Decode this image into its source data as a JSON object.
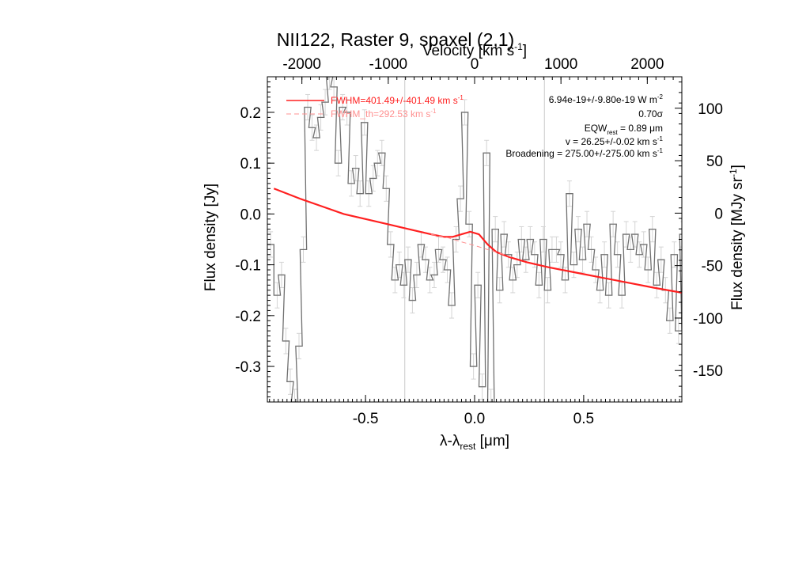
{
  "chart_data": {
    "type": "line",
    "title": "NII122, Raster 9, spaxel (2,1)",
    "xlabel": "λ-λ",
    "xlabel_sub": "rest",
    "xlabel_unit": " [μm]",
    "ylabel": "Flux density [Jy]",
    "y2label": "Flux density [MJy sr",
    "y2label_sup": "-1",
    "y2label_end": "]",
    "top_axis_label": "Velocity [km s",
    "top_axis_label_sup": "-1",
    "top_axis_label_end": "]",
    "xlim": [
      -0.95,
      0.95
    ],
    "ylim": [
      -0.37,
      0.27
    ],
    "y2lim": [
      -180,
      130
    ],
    "top_xlim": [
      -2400,
      2400
    ],
    "x_ticks": [
      -0.5,
      0.0,
      0.5
    ],
    "x_tick_labels": [
      "-0.5",
      "0.0",
      "0.5"
    ],
    "y_ticks": [
      -0.3,
      -0.2,
      -0.1,
      0.0,
      0.1,
      0.2
    ],
    "y_tick_labels": [
      "-0.3",
      "-0.2",
      "-0.1",
      "0.0",
      "0.1",
      "0.2"
    ],
    "y2_ticks": [
      -150,
      -100,
      -50,
      0,
      50,
      100
    ],
    "y2_tick_labels": [
      "-150",
      "-100",
      "-50",
      "0",
      "50",
      "100"
    ],
    "top_ticks": [
      -2000,
      -1000,
      0,
      1000,
      2000
    ],
    "top_tick_labels": [
      "-2000",
      "-1000",
      "0",
      "1000",
      "2000"
    ],
    "vertical_lines_x": [
      -0.32,
      0.32
    ],
    "grid": false,
    "legend_position": "top-left",
    "legend": [
      {
        "label": "FWHM=401.49+/-401.49 km s",
        "sup": "-1",
        "style": "solid",
        "color": "#ff2020"
      },
      {
        "label": "FWHM_th=292.53 km s",
        "sup": "-1",
        "style": "dashed",
        "color": "#ff9090"
      }
    ],
    "annotations": [
      {
        "text": "6.94e-19+/-9.80e-19 W m",
        "sup": "-2",
        "end": ""
      },
      {
        "text": "0.70σ",
        "sup": "",
        "end": ""
      },
      {
        "text": "EQW",
        "sub": "rest",
        "end": " = 0.89 μm"
      },
      {
        "text": "v = 26.25+/-0.02 km s",
        "sup": "-1",
        "end": ""
      },
      {
        "text": "Broadening = 275.00+/-275.00 km s",
        "sup": "-1",
        "end": ""
      }
    ],
    "series": [
      {
        "kind": "step",
        "color": "#707070",
        "x": [
          -0.95,
          -0.92,
          -0.9,
          -0.88,
          -0.86,
          -0.84,
          -0.82,
          -0.8,
          -0.78,
          -0.76,
          -0.74,
          -0.72,
          -0.7,
          -0.68,
          -0.66,
          -0.64,
          -0.62,
          -0.6,
          -0.58,
          -0.56,
          -0.54,
          -0.52,
          -0.5,
          -0.48,
          -0.46,
          -0.44,
          -0.42,
          -0.4,
          -0.38,
          -0.36,
          -0.34,
          -0.32,
          -0.3,
          -0.28,
          -0.26,
          -0.24,
          -0.22,
          -0.2,
          -0.18,
          -0.16,
          -0.14,
          -0.12,
          -0.1,
          -0.08,
          -0.06,
          -0.04,
          -0.02,
          0.0,
          0.02,
          0.04,
          0.06,
          0.08,
          0.1,
          0.12,
          0.14,
          0.16,
          0.18,
          0.2,
          0.22,
          0.24,
          0.26,
          0.28,
          0.3,
          0.32,
          0.34,
          0.36,
          0.38,
          0.4,
          0.42,
          0.44,
          0.46,
          0.48,
          0.5,
          0.52,
          0.54,
          0.56,
          0.58,
          0.6,
          0.62,
          0.64,
          0.66,
          0.68,
          0.7,
          0.72,
          0.74,
          0.76,
          0.78,
          0.8,
          0.82,
          0.84,
          0.86,
          0.88,
          0.9,
          0.92,
          0.94
        ],
        "y": [
          -0.06,
          -0.16,
          -0.12,
          -0.25,
          -0.33,
          -0.37,
          -0.26,
          -0.07,
          0.21,
          0.17,
          0.15,
          0.19,
          0.22,
          0.27,
          0.25,
          0.1,
          0.21,
          0.2,
          0.06,
          0.09,
          0.04,
          0.18,
          0.04,
          0.07,
          0.1,
          0.12,
          0.05,
          -0.06,
          -0.13,
          -0.1,
          -0.14,
          -0.09,
          -0.17,
          -0.12,
          -0.06,
          -0.09,
          -0.13,
          -0.12,
          -0.07,
          -0.09,
          -0.11,
          -0.18,
          -0.05,
          0.03,
          0.2,
          -0.02,
          -0.3,
          -0.14,
          -0.34,
          0.12,
          -0.37,
          -0.03,
          -0.15,
          -0.04,
          -0.08,
          -0.13,
          -0.1,
          -0.05,
          -0.09,
          -0.05,
          -0.08,
          -0.14,
          -0.05,
          -0.15,
          -0.07,
          -0.07,
          -0.08,
          -0.13,
          0.04,
          -0.1,
          -0.03,
          -0.09,
          -0.02,
          -0.07,
          -0.11,
          -0.15,
          -0.08,
          -0.16,
          -0.02,
          -0.08,
          -0.16,
          -0.04,
          -0.07,
          -0.04,
          -0.08,
          -0.06,
          -0.11,
          -0.03,
          -0.14,
          -0.09,
          -0.15,
          -0.21,
          -0.08,
          -0.23,
          -0.04
        ]
      },
      {
        "name": "FWHM=401.49+/-401.49 km s-1",
        "kind": "line",
        "color": "#ff2020",
        "x": [
          -0.92,
          -0.8,
          -0.7,
          -0.6,
          -0.5,
          -0.4,
          -0.3,
          -0.2,
          -0.14,
          -0.1,
          -0.06,
          -0.02,
          0.02,
          0.06,
          0.1,
          0.16,
          0.24,
          0.34,
          0.46,
          0.58,
          0.7,
          0.82,
          0.95
        ],
        "y": [
          0.05,
          0.03,
          0.015,
          0.0,
          -0.01,
          -0.02,
          -0.03,
          -0.04,
          -0.045,
          -0.045,
          -0.04,
          -0.035,
          -0.04,
          -0.06,
          -0.075,
          -0.085,
          -0.095,
          -0.105,
          -0.115,
          -0.125,
          -0.135,
          -0.145,
          -0.155
        ]
      },
      {
        "name": "FWHM_th=292.53 km s-1",
        "kind": "dashed",
        "color": "#ff9090",
        "x": [
          -0.2,
          -0.12,
          -0.06,
          0.0,
          0.06,
          0.12,
          0.18
        ],
        "y": [
          -0.04,
          -0.047,
          -0.055,
          -0.062,
          -0.07,
          -0.078,
          -0.086
        ]
      }
    ]
  }
}
